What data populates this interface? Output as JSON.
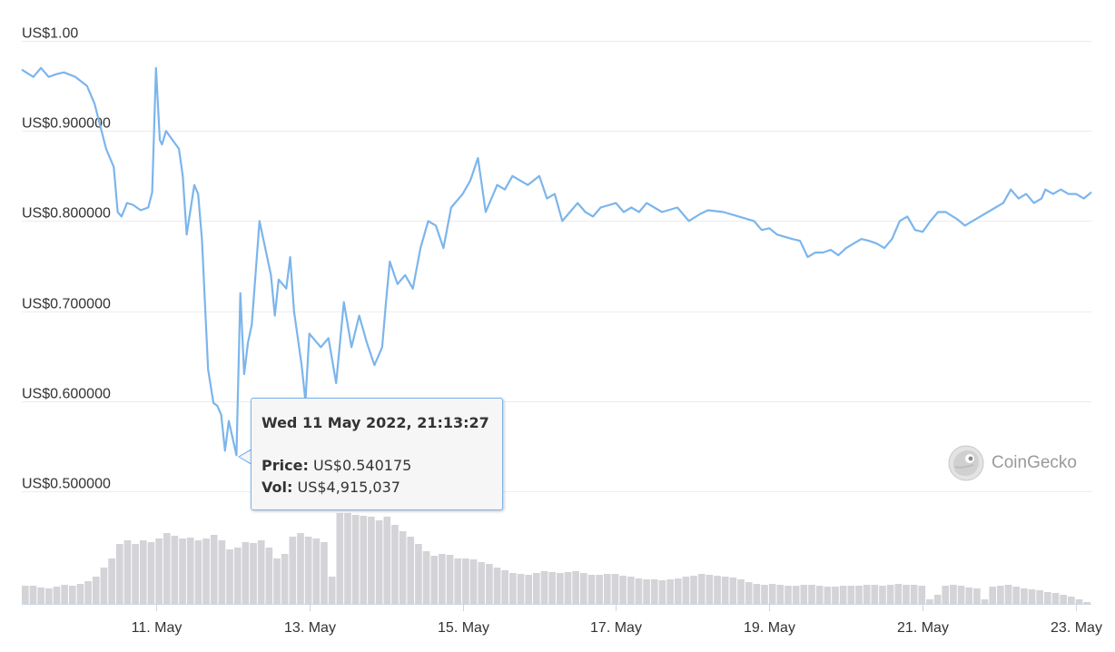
{
  "chart_data": {
    "type": "line",
    "title": "",
    "xlabel": "",
    "ylabel": "",
    "y_ticks": [
      "US$1.00",
      "US$0.900000",
      "US$0.800000",
      "US$0.700000",
      "US$0.600000",
      "US$0.500000"
    ],
    "y_tick_values": [
      1.0,
      0.9,
      0.8,
      0.7,
      0.6,
      0.5
    ],
    "ylim": [
      0.5,
      1.0
    ],
    "x_ticks": [
      "11. May",
      "13. May",
      "15. May",
      "17. May",
      "19. May",
      "21. May",
      "23. May"
    ],
    "x_tick_values": [
      11,
      13,
      15,
      17,
      19,
      21,
      23
    ],
    "xlim": [
      9.25,
      23.2
    ],
    "x_unit": "day of May 2022",
    "grid": true,
    "series": [
      {
        "color": "#7cb5ec",
        "x": [
          9.25,
          9.4,
          9.5,
          9.6,
          9.7,
          9.8,
          9.95,
          10.1,
          10.2,
          10.35,
          10.45,
          10.5,
          10.55,
          10.6,
          10.62,
          10.7,
          10.8,
          10.9,
          10.95,
          11.0,
          11.05,
          11.08,
          11.13,
          11.3,
          11.35,
          11.4,
          11.5,
          11.55,
          11.6,
          11.68,
          11.75,
          11.8,
          11.85,
          11.9,
          11.95,
          12.05,
          12.1,
          12.15,
          12.2,
          12.25,
          12.35,
          12.45,
          12.5,
          12.55,
          12.6,
          12.65,
          12.7,
          12.75,
          12.8,
          12.9,
          12.95,
          13.0,
          13.05,
          13.15,
          13.25,
          13.35,
          13.45,
          13.5,
          13.55,
          13.65,
          13.75,
          13.85,
          13.95,
          14.0,
          14.05,
          14.15,
          14.25,
          14.35,
          14.45,
          14.55,
          14.65,
          14.75,
          14.85,
          15.0,
          15.1,
          15.2,
          15.3,
          15.45,
          15.55,
          15.65,
          15.75,
          15.85,
          16.0,
          16.1,
          16.2,
          16.3,
          16.5,
          16.6,
          16.7,
          16.8,
          17.0,
          17.1,
          17.2,
          17.3,
          17.4,
          17.6,
          17.8,
          17.95,
          18.1,
          18.2,
          18.4,
          18.6,
          18.8,
          18.9,
          19.0,
          19.1,
          19.3,
          19.4,
          19.5,
          19.6,
          19.7,
          19.8,
          19.9,
          20.0,
          20.1,
          20.2,
          20.3,
          20.4,
          20.5,
          20.6,
          20.7,
          20.8,
          20.9,
          21.0,
          21.1,
          21.2,
          21.3,
          21.45,
          21.55,
          21.65,
          21.75,
          21.85,
          21.95,
          22.05,
          22.15,
          22.25,
          22.35,
          22.45,
          22.55,
          22.6,
          22.7,
          22.8,
          22.9,
          23.0,
          23.1,
          23.2
        ],
        "y": [
          0.968,
          0.96,
          0.97,
          0.96,
          0.963,
          0.965,
          0.96,
          0.95,
          0.93,
          0.88,
          0.86,
          0.81,
          0.805,
          0.815,
          0.82,
          0.818,
          0.812,
          0.815,
          0.832,
          0.97,
          0.89,
          0.885,
          0.9,
          0.88,
          0.85,
          0.785,
          0.84,
          0.83,
          0.78,
          0.635,
          0.598,
          0.595,
          0.585,
          0.545,
          0.578,
          0.54,
          0.72,
          0.63,
          0.665,
          0.685,
          0.8,
          0.76,
          0.74,
          0.695,
          0.735,
          0.73,
          0.725,
          0.76,
          0.7,
          0.64,
          0.6,
          0.675,
          0.67,
          0.66,
          0.67,
          0.62,
          0.71,
          0.685,
          0.66,
          0.695,
          0.665,
          0.64,
          0.66,
          0.71,
          0.755,
          0.73,
          0.74,
          0.725,
          0.77,
          0.8,
          0.795,
          0.77,
          0.815,
          0.83,
          0.845,
          0.87,
          0.81,
          0.84,
          0.835,
          0.85,
          0.845,
          0.84,
          0.85,
          0.825,
          0.83,
          0.8,
          0.82,
          0.81,
          0.805,
          0.815,
          0.82,
          0.81,
          0.815,
          0.81,
          0.82,
          0.81,
          0.815,
          0.8,
          0.808,
          0.812,
          0.81,
          0.805,
          0.8,
          0.79,
          0.792,
          0.785,
          0.78,
          0.778,
          0.76,
          0.765,
          0.765,
          0.768,
          0.762,
          0.77,
          0.775,
          0.78,
          0.778,
          0.775,
          0.77,
          0.78,
          0.8,
          0.805,
          0.79,
          0.788,
          0.8,
          0.81,
          0.81,
          0.802,
          0.795,
          0.8,
          0.805,
          0.81,
          0.815,
          0.82,
          0.835,
          0.825,
          0.83,
          0.82,
          0.825,
          0.835,
          0.83,
          0.835,
          0.83,
          0.83,
          0.825,
          0.832
        ],
        "name": ""
      }
    ],
    "volume": {
      "color": "#d4d4d8",
      "x_start": 9.25,
      "x_end": 23.2,
      "relative_values": [
        0.2,
        0.2,
        0.18,
        0.17,
        0.19,
        0.21,
        0.2,
        0.22,
        0.25,
        0.3,
        0.4,
        0.5,
        0.66,
        0.7,
        0.66,
        0.7,
        0.68,
        0.72,
        0.78,
        0.75,
        0.72,
        0.73,
        0.7,
        0.72,
        0.76,
        0.7,
        0.6,
        0.62,
        0.68,
        0.67,
        0.7,
        0.62,
        0.5,
        0.55,
        0.74,
        0.78,
        0.74,
        0.72,
        0.68,
        0.3,
        1.0,
        1.0,
        0.98,
        0.97,
        0.96,
        0.92,
        0.96,
        0.87,
        0.8,
        0.74,
        0.66,
        0.58,
        0.53,
        0.55,
        0.54,
        0.5,
        0.5,
        0.49,
        0.46,
        0.44,
        0.4,
        0.37,
        0.34,
        0.33,
        0.32,
        0.34,
        0.36,
        0.35,
        0.34,
        0.35,
        0.36,
        0.34,
        0.32,
        0.32,
        0.33,
        0.33,
        0.31,
        0.3,
        0.28,
        0.27,
        0.27,
        0.26,
        0.27,
        0.28,
        0.3,
        0.31,
        0.33,
        0.32,
        0.31,
        0.3,
        0.29,
        0.27,
        0.24,
        0.22,
        0.21,
        0.22,
        0.21,
        0.2,
        0.2,
        0.21,
        0.21,
        0.2,
        0.19,
        0.19,
        0.2,
        0.2,
        0.2,
        0.21,
        0.21,
        0.2,
        0.21,
        0.22,
        0.21,
        0.21,
        0.2,
        0.05,
        0.1,
        0.2,
        0.21,
        0.2,
        0.18,
        0.17,
        0.05,
        0.19,
        0.2,
        0.21,
        0.19,
        0.17,
        0.16,
        0.15,
        0.13,
        0.12,
        0.1,
        0.08,
        0.05,
        0.02
      ]
    }
  },
  "tooltip": {
    "date": "Wed 11 May 2022, 21:13:27",
    "price_label": "Price:",
    "price_value": "US$0.540175",
    "vol_label": "Vol:",
    "vol_value": "US$4,915,037"
  },
  "watermark": {
    "text": "CoinGecko",
    "logo_icon": "gecko-logo-icon"
  }
}
